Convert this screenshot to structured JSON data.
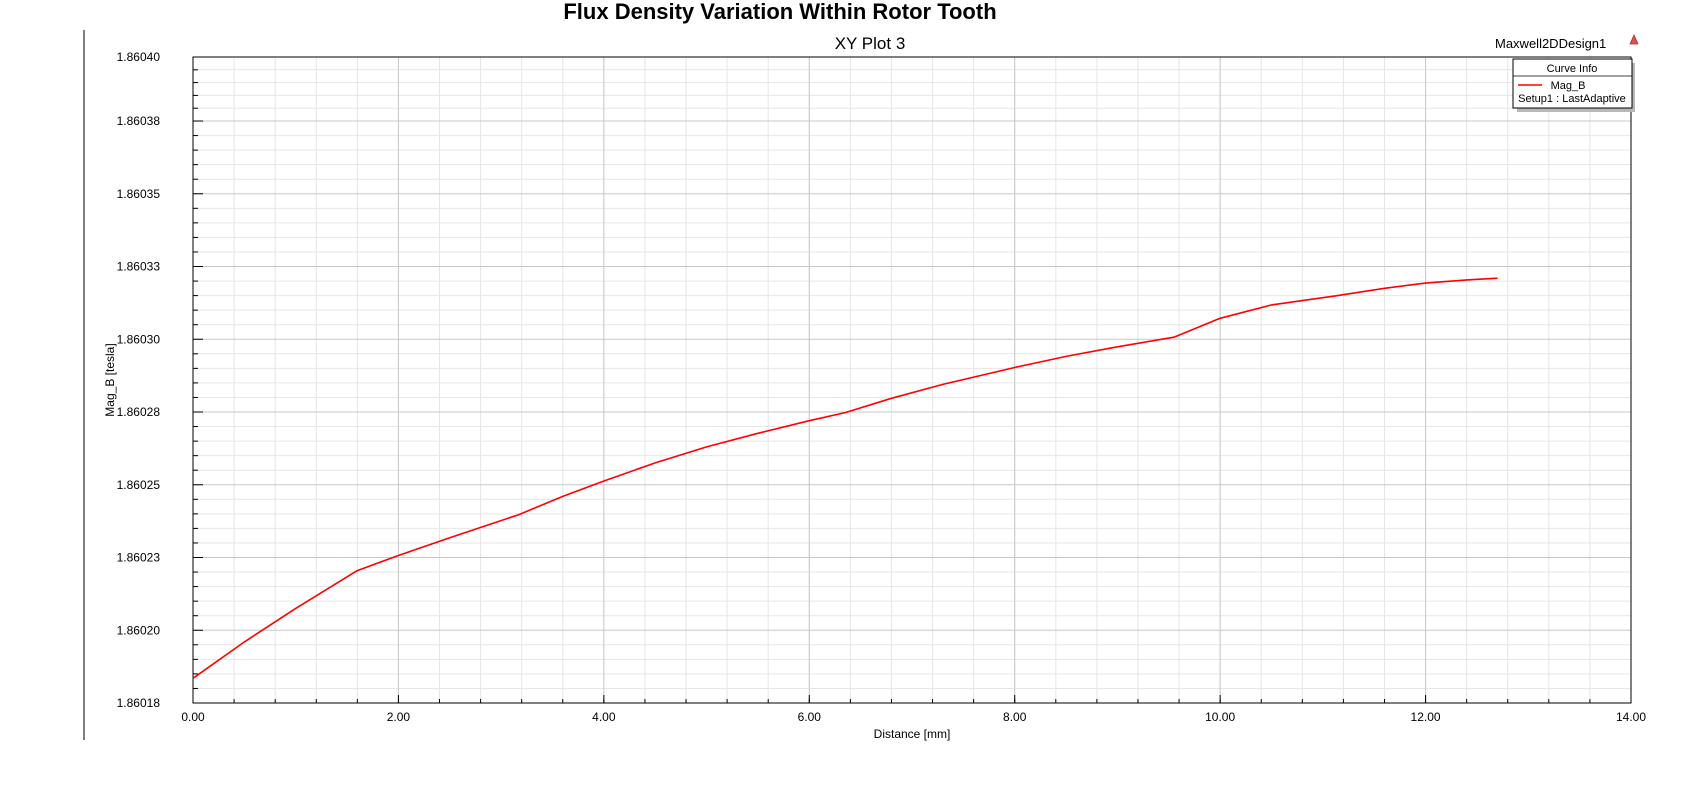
{
  "page": {
    "title": "Flux Density Variation Within Rotor Tooth"
  },
  "colors": {
    "series": "#ff0000",
    "grid_major": "#c8c8c8",
    "grid_minor": "#e6e6e6",
    "axis": "#000000",
    "logo": "#d9534f"
  },
  "chart_data": {
    "type": "line",
    "title": "XY Plot 3",
    "design_name": "Maxwell2DDesign1",
    "xlabel": "Distance [mm]",
    "ylabel": "Mag_B [tesla]",
    "xlim": [
      0,
      14
    ],
    "ylim": [
      1.8601775,
      1.8603995
    ],
    "x_ticks": [
      0,
      2,
      4,
      6,
      8,
      10,
      12,
      14
    ],
    "x_tick_labels": [
      "0.00",
      "2.00",
      "4.00",
      "6.00",
      "8.00",
      "10.00",
      "12.00",
      "14.00"
    ],
    "y_ticks": [
      1.8601775,
      1.8602025,
      1.8602275,
      1.8602525,
      1.8602775,
      1.8603025,
      1.8603275,
      1.8603525,
      1.8603775,
      1.8603995
    ],
    "y_tick_labels": [
      "1.86018",
      "1.86020",
      "1.86023",
      "1.86025",
      "1.86028",
      "1.86030",
      "1.86033",
      "1.86035",
      "1.86038",
      "1.86040"
    ],
    "grid": true,
    "legend": {
      "title": "Curve Info",
      "placement": "top-right",
      "entries": [
        {
          "name": "Mag_B",
          "sub": "Setup1 : LastAdaptive"
        }
      ]
    },
    "series": [
      {
        "name": "Mag_B",
        "x": [
          0.0,
          0.5,
          1.0,
          1.6,
          2.0,
          2.5,
          3.17,
          3.6,
          4.0,
          4.5,
          5.0,
          5.5,
          6.0,
          6.35,
          6.8,
          7.3,
          8.0,
          8.5,
          9.0,
          9.55,
          10.0,
          10.5,
          11.12,
          11.6,
          12.0,
          12.4,
          12.7
        ],
        "y": [
          1.860186,
          1.8601985,
          1.86021,
          1.860223,
          1.8602282,
          1.8602343,
          1.8602422,
          1.8602485,
          1.8602538,
          1.86026,
          1.8602655,
          1.8602702,
          1.8602745,
          1.8602773,
          1.8602822,
          1.860287,
          1.8602928,
          1.8602966,
          1.8602999,
          1.8603032,
          1.8603097,
          1.8603143,
          1.8603174,
          1.86032,
          1.8603218,
          1.8603229,
          1.8603235
        ]
      }
    ]
  }
}
